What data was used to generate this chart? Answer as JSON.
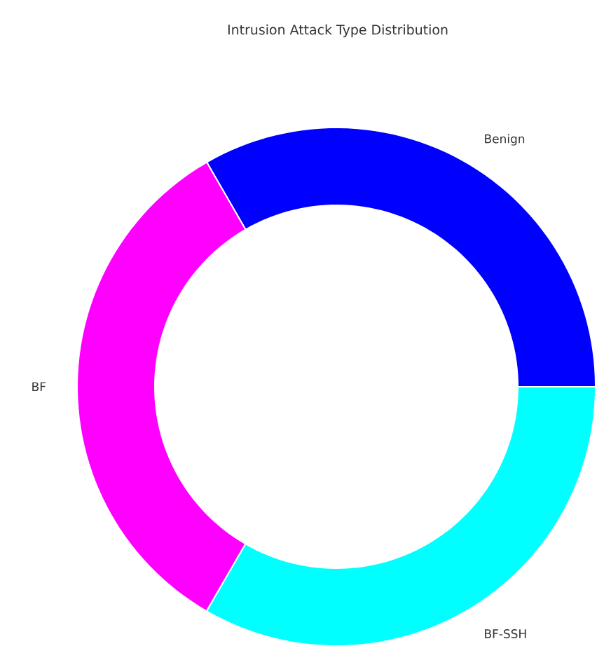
{
  "chart_data": {
    "type": "donut",
    "title": "Intrusion Attack Type Distribution",
    "categories": [
      "Benign",
      "BF",
      "BF-SSH"
    ],
    "values": [
      33.33,
      33.33,
      33.34
    ],
    "colors": [
      "#0000ff",
      "#ff00ff",
      "#00ffff"
    ]
  }
}
